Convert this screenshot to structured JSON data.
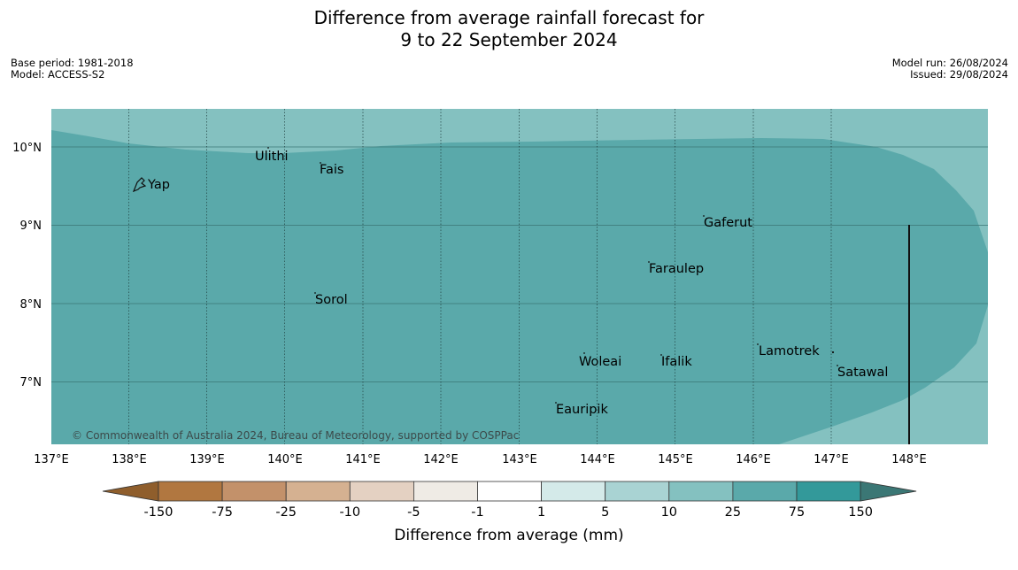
{
  "title": {
    "line1": "Difference from average rainfall forecast for",
    "line2": "9 to 22 September 2024"
  },
  "meta_left": {
    "base_period": "Base period: 1981-2018",
    "model": "Model: ACCESS-S2"
  },
  "meta_right": {
    "model_run": "Model run: 26/08/2024",
    "issued": "Issued: 29/08/2024"
  },
  "map": {
    "lat_labels": [
      "10°N",
      "9°N",
      "8°N",
      "7°N"
    ],
    "lon_labels": [
      "137°E",
      "138°E",
      "139°E",
      "140°E",
      "141°E",
      "142°E",
      "143°E",
      "144°E",
      "145°E",
      "146°E",
      "147°E",
      "148°E"
    ],
    "places": {
      "yap": "Yap",
      "ulithi": "Ulithi",
      "fais": "Fais",
      "gaferut": "Gaferut",
      "faraulep": "Faraulep",
      "sorol": "Sorol",
      "lamotrek": "Lamotrek",
      "woleai": "Woleai",
      "ifalik": "Ifalik",
      "satawal": "Satawal",
      "eauripik": "Eauripik"
    },
    "copyright": "© Commonwealth of Australia 2024, Bureau of Meteorology, supported by COSPPac",
    "colors": {
      "category_25_75": "#5aa9aa",
      "category_10_25": "#84c1c0"
    }
  },
  "colorbar": {
    "ticks": [
      "-150",
      "-75",
      "-25",
      "-10",
      "-5",
      "-1",
      "1",
      "5",
      "10",
      "25",
      "75",
      "150"
    ],
    "colors": [
      "#8f5e2c",
      "#b17740",
      "#c3916a",
      "#d5b191",
      "#e4d1c2",
      "#efebe5",
      "#ffffff",
      "#d4eae9",
      "#a9d3d3",
      "#84c1c0",
      "#5aa9aa",
      "#33999a",
      "#3b7775"
    ],
    "label": "Difference from average (mm)"
  }
}
